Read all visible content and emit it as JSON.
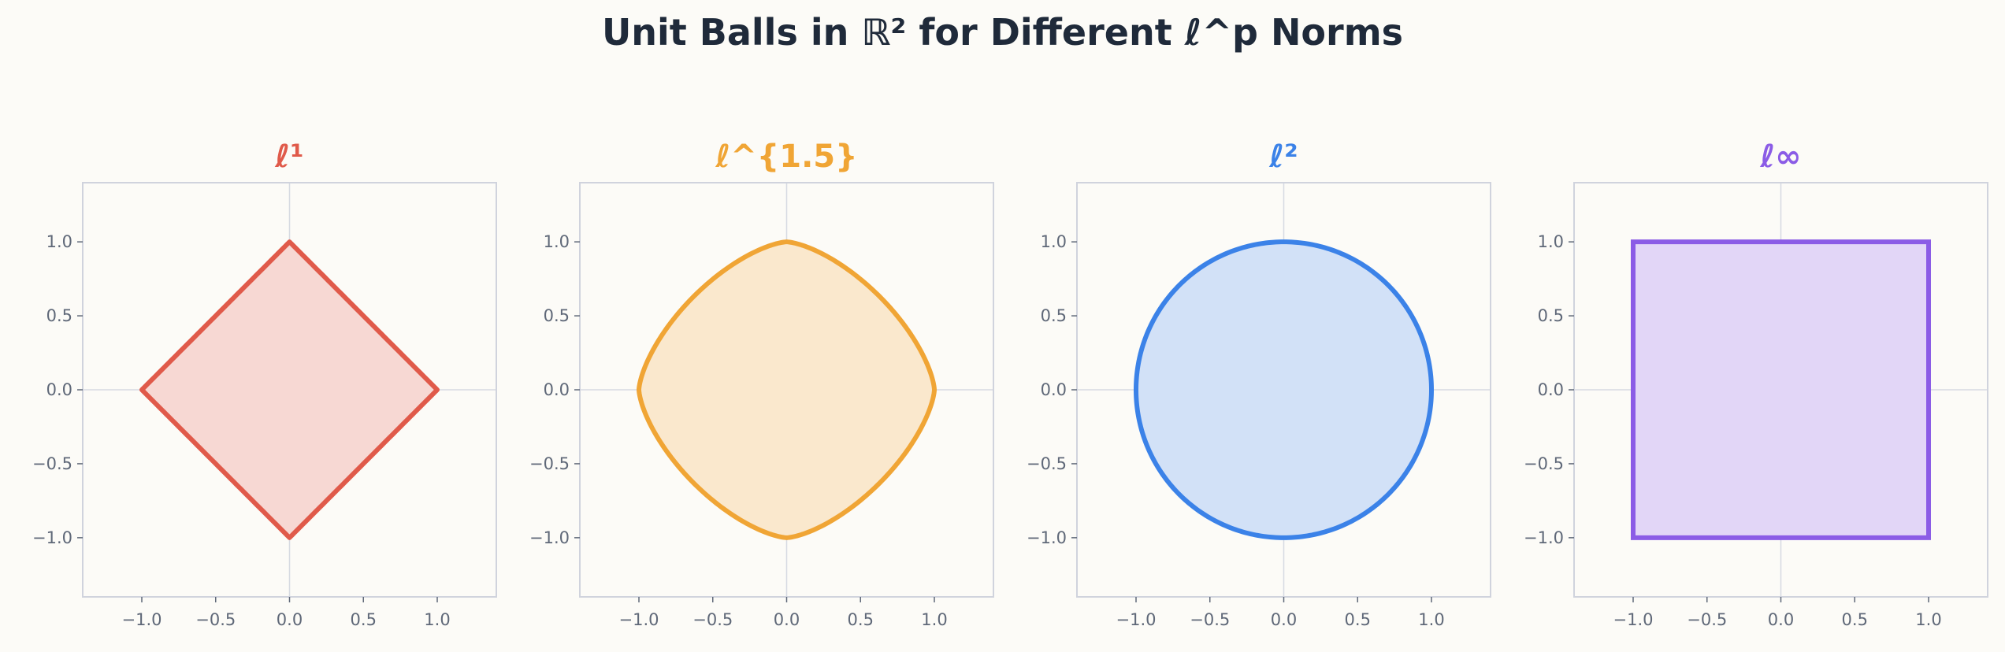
{
  "title": "Unit Balls in ℝ² for Different ℓ^p Norms",
  "colors": {
    "background": "#fcfbf7",
    "axes_frame": "#d0d3dd",
    "grid": "#d6dae2",
    "tick_text": "#5f6878",
    "title_text": "#1f2a3a"
  },
  "chart_data": [
    {
      "type": "line",
      "title": "ℓ¹",
      "p": 1,
      "color": "#e05a4a",
      "fill": "#f7d8d3",
      "xlim": [
        -1.4,
        1.4
      ],
      "ylim": [
        -1.4,
        1.4
      ],
      "xticks": [
        -1.0,
        -0.5,
        0.0,
        0.5,
        1.0
      ],
      "yticks": [
        -1.0,
        -0.5,
        0.0,
        0.5,
        1.0
      ],
      "xtick_labels": [
        "−1.0",
        "−0.5",
        "0.0",
        "0.5",
        "1.0"
      ],
      "ytick_labels": [
        "−1.0",
        "−0.5",
        "0.0",
        "0.5",
        "1.0"
      ],
      "grid": "axes-zero-lines",
      "xlabel": "",
      "ylabel": ""
    },
    {
      "type": "line",
      "title": "ℓ^{1.5}",
      "p": 1.5,
      "color": "#f0a535",
      "fill": "#fae8cd",
      "xlim": [
        -1.4,
        1.4
      ],
      "ylim": [
        -1.4,
        1.4
      ],
      "xticks": [
        -1.0,
        -0.5,
        0.0,
        0.5,
        1.0
      ],
      "yticks": [
        -1.0,
        -0.5,
        0.0,
        0.5,
        1.0
      ],
      "xtick_labels": [
        "−1.0",
        "−0.5",
        "0.0",
        "0.5",
        "1.0"
      ],
      "ytick_labels": [
        "−1.0",
        "−0.5",
        "0.0",
        "0.5",
        "1.0"
      ],
      "grid": "axes-zero-lines",
      "xlabel": "",
      "ylabel": ""
    },
    {
      "type": "line",
      "title": "ℓ²",
      "p": 2,
      "color": "#3b82e8",
      "fill": "#d2e1f7",
      "xlim": [
        -1.4,
        1.4
      ],
      "ylim": [
        -1.4,
        1.4
      ],
      "xticks": [
        -1.0,
        -0.5,
        0.0,
        0.5,
        1.0
      ],
      "yticks": [
        -1.0,
        -0.5,
        0.0,
        0.5,
        1.0
      ],
      "xtick_labels": [
        "−1.0",
        "−0.5",
        "0.0",
        "0.5",
        "1.0"
      ],
      "ytick_labels": [
        "−1.0",
        "−0.5",
        "0.0",
        "0.5",
        "1.0"
      ],
      "grid": "axes-zero-lines",
      "xlabel": "",
      "ylabel": ""
    },
    {
      "type": "line",
      "title": "ℓ∞",
      "p": "inf",
      "color": "#8b5ce6",
      "fill": "#e2d6f7",
      "xlim": [
        -1.4,
        1.4
      ],
      "ylim": [
        -1.4,
        1.4
      ],
      "xticks": [
        -1.0,
        -0.5,
        0.0,
        0.5,
        1.0
      ],
      "yticks": [
        -1.0,
        -0.5,
        0.0,
        0.5,
        1.0
      ],
      "xtick_labels": [
        "−1.0",
        "−0.5",
        "0.0",
        "0.5",
        "1.0"
      ],
      "ytick_labels": [
        "−1.0",
        "−0.5",
        "0.0",
        "0.5",
        "1.0"
      ],
      "grid": "axes-zero-lines",
      "xlabel": "",
      "ylabel": ""
    }
  ]
}
